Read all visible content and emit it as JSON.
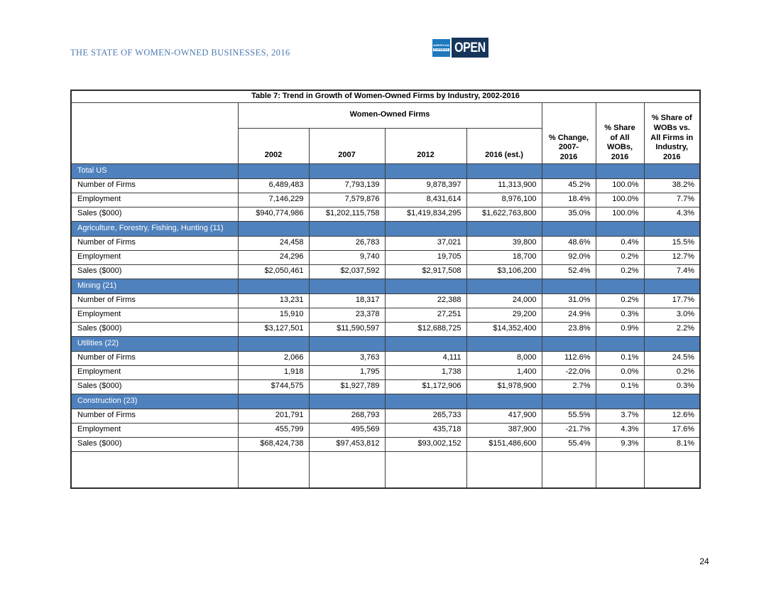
{
  "page": {
    "header_title": "THE STATE OF WOMEN-OWNED BUSINESSES, 2016",
    "page_number": "24"
  },
  "logo": {
    "amex_line1": "AMERICAN",
    "amex_line2": "EXPRESS",
    "open_label": "OPEN"
  },
  "colors": {
    "header_text": "#4E79B2",
    "section_row_bg": "#4F81BD",
    "section_row_text": "#FFFFFF",
    "amex_blue": "#1E78BE",
    "open_navy": "#16355B",
    "border": "#3C3C3C"
  },
  "chart_data": {
    "type": "table",
    "title": "Table 7: Trend in Growth of Women-Owned Firms by Industry, 2002-2016",
    "group_header": "Women-Owned Firms",
    "year_columns": [
      "2002",
      "2007",
      "2012",
      "2016 (est.)"
    ],
    "pct_headers": [
      "% Change,\n2007-\n2016",
      "% Share\nof All\nWOBs,\n2016",
      "% Share of\nWOBs vs.\nAll Firms in\nIndustry,\n2016"
    ],
    "sections": [
      {
        "label": "Total US",
        "rows": [
          {
            "metric": "Number of Firms",
            "values": [
              "6,489,483",
              "7,793,139",
              "9,878,397",
              "11,313,900",
              "45.2%",
              "100.0%",
              "38.2%"
            ]
          },
          {
            "metric": "Employment",
            "values": [
              "7,146,229",
              "7,579,876",
              "8,431,614",
              "8,976,100",
              "18.4%",
              "100.0%",
              "7.7%"
            ]
          },
          {
            "metric": "Sales ($000)",
            "values": [
              "$940,774,986",
              "$1,202,115,758",
              "$1,419,834,295",
              "$1,622,763,800",
              "35.0%",
              "100.0%",
              "4.3%"
            ]
          }
        ]
      },
      {
        "label": "Agriculture, Forestry, Fishing, Hunting (11)",
        "rows": [
          {
            "metric": "Number of Firms",
            "values": [
              "24,458",
              "26,783",
              "37,021",
              "39,800",
              "48.6%",
              "0.4%",
              "15.5%"
            ]
          },
          {
            "metric": "Employment",
            "values": [
              "24,296",
              "9,740",
              "19,705",
              "18,700",
              "92.0%",
              "0.2%",
              "12.7%"
            ]
          },
          {
            "metric": "Sales ($000)",
            "values": [
              "$2,050,461",
              "$2,037,592",
              "$2,917,508",
              "$3,106,200",
              "52.4%",
              "0.2%",
              "7.4%"
            ]
          }
        ]
      },
      {
        "label": "Mining (21)",
        "rows": [
          {
            "metric": "Number of Firms",
            "values": [
              "13,231",
              "18,317",
              "22,388",
              "24,000",
              "31.0%",
              "0.2%",
              "17.7%"
            ]
          },
          {
            "metric": "Employment",
            "values": [
              "15,910",
              "23,378",
              "27,251",
              "29,200",
              "24.9%",
              "0.3%",
              "3.0%"
            ]
          },
          {
            "metric": "Sales ($000)",
            "values": [
              "$3,127,501",
              "$11,590,597",
              "$12,688,725",
              "$14,352,400",
              "23.8%",
              "0.9%",
              "2.2%"
            ]
          }
        ]
      },
      {
        "label": "Utilities (22)",
        "rows": [
          {
            "metric": "Number of Firms",
            "values": [
              "2,066",
              "3,763",
              "4,111",
              "8,000",
              "112.6%",
              "0.1%",
              "24.5%"
            ]
          },
          {
            "metric": "Employment",
            "values": [
              "1,918",
              "1,795",
              "1,738",
              "1,400",
              "-22.0%",
              "0.0%",
              "0.2%"
            ]
          },
          {
            "metric": "Sales ($000)",
            "values": [
              "$744,575",
              "$1,927,789",
              "$1,172,906",
              "$1,978,900",
              "2.7%",
              "0.1%",
              "0.3%"
            ]
          }
        ]
      },
      {
        "label": "Construction (23)",
        "rows": [
          {
            "metric": "Number of Firms",
            "values": [
              "201,791",
              "268,793",
              "265,733",
              "417,900",
              "55.5%",
              "3.7%",
              "12.6%"
            ]
          },
          {
            "metric": "Employment",
            "values": [
              "455,799",
              "495,569",
              "435,718",
              "387,900",
              "-21.7%",
              "4.3%",
              "17.6%"
            ]
          },
          {
            "metric": "Sales ($000)",
            "values": [
              "$68,424,738",
              "$97,453,812",
              "$93,002,152",
              "$151,486,600",
              "55.4%",
              "9.3%",
              "8.1%"
            ]
          }
        ]
      }
    ]
  }
}
